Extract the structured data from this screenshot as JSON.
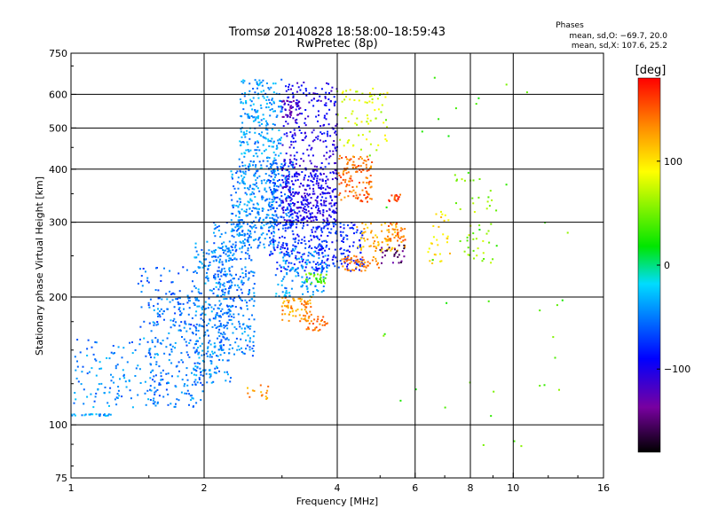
{
  "chart_data": {
    "type": "scatter",
    "title": "Tromsø 20140828 18:58:00–18:59:43",
    "subtitle": "RwPretec (8p)",
    "xlabel": "Frequency [MHz]",
    "ylabel": "Stationary phase Virtual Height [km]",
    "xscale": "log",
    "yscale": "log",
    "xlim": [
      1,
      16
    ],
    "ylim": [
      75,
      750
    ],
    "x_ticks": [
      1,
      2,
      4,
      6,
      8,
      10,
      16
    ],
    "x_tick_labels": [
      "1",
      "2",
      "4",
      "6",
      "8",
      "10",
      "16"
    ],
    "x_grid": [
      2,
      4,
      6,
      8,
      10
    ],
    "y_ticks": [
      75,
      100,
      200,
      300,
      400,
      500,
      600,
      750
    ],
    "y_tick_labels": [
      "75",
      "100",
      "200",
      "300",
      "400",
      "500",
      "600",
      "750"
    ],
    "y_grid": [
      100,
      200,
      300,
      400,
      500,
      600
    ],
    "grid": true,
    "legend": {
      "header": "Phases",
      "lines": [
        "mean, sd,O: −69.7, 20.0",
        "mean, sd,X: 107.6, 25.2"
      ],
      "placement": "top-right"
    },
    "colorbar": {
      "label": "[deg]",
      "range": [
        -180,
        180
      ],
      "ticks": [
        100,
        0,
        -100
      ],
      "tick_labels": [
        "100",
        "0",
        "−100"
      ],
      "colormap": "rainbow (black → purple → blue → cyan → green → yellow → orange → red)"
    },
    "point_clusters": [
      {
        "x": [
          1.0,
          1.25
        ],
        "y": [
          105,
          106
        ],
        "phase": -40,
        "n": 25
      },
      {
        "x": [
          1.0,
          1.6
        ],
        "y": [
          110,
          160
        ],
        "phase": -45,
        "n": 120
      },
      {
        "x": [
          1.5,
          2.0
        ],
        "y": [
          110,
          200
        ],
        "phase": -50,
        "n": 230
      },
      {
        "x": [
          1.4,
          1.9
        ],
        "y": [
          170,
          240
        ],
        "phase": -60,
        "n": 60
      },
      {
        "x": [
          1.9,
          2.3
        ],
        "y": [
          125,
          270
        ],
        "phase": -45,
        "n": 260
      },
      {
        "x": [
          2.1,
          2.6
        ],
        "y": [
          145,
          300
        ],
        "phase": -50,
        "n": 300
      },
      {
        "x": [
          2.3,
          2.9
        ],
        "y": [
          260,
          420
        ],
        "phase": -45,
        "n": 300
      },
      {
        "x": [
          2.4,
          3.0
        ],
        "y": [
          420,
          650
        ],
        "phase": -40,
        "n": 220
      },
      {
        "x": [
          2.8,
          3.2
        ],
        "y": [
          290,
          420
        ],
        "phase": -60,
        "n": 160
      },
      {
        "x": [
          3.0,
          4.0
        ],
        "y": [
          300,
          400
        ],
        "phase": -100,
        "n": 320
      },
      {
        "x": [
          3.0,
          4.0
        ],
        "y": [
          400,
          640
        ],
        "phase": -100,
        "n": 200
      },
      {
        "x": [
          3.0,
          3.3
        ],
        "y": [
          530,
          580
        ],
        "phase": -120,
        "n": 40
      },
      {
        "x": [
          2.8,
          4.6
        ],
        "y": [
          230,
          300
        ],
        "phase": -80,
        "n": 300
      },
      {
        "x": [
          2.9,
          3.8
        ],
        "y": [
          200,
          260
        ],
        "phase": -40,
        "n": 120
      },
      {
        "x": [
          3.4,
          3.8
        ],
        "y": [
          215,
          228
        ],
        "phase": 40,
        "n": 30
      },
      {
        "x": [
          3.0,
          3.5
        ],
        "y": [
          175,
          200
        ],
        "phase": 130,
        "n": 70
      },
      {
        "x": [
          3.4,
          3.8
        ],
        "y": [
          165,
          180
        ],
        "phase": 140,
        "n": 30
      },
      {
        "x": [
          4.0,
          4.8
        ],
        "y": [
          335,
          430
        ],
        "phase": 145,
        "n": 120
      },
      {
        "x": [
          4.0,
          5.2
        ],
        "y": [
          440,
          620
        ],
        "phase": 80,
        "n": 70
      },
      {
        "x": [
          4.1,
          5.0
        ],
        "y": [
          230,
          250
        ],
        "phase": 140,
        "n": 50
      },
      {
        "x": [
          4.4,
          5.5
        ],
        "y": [
          255,
          300
        ],
        "phase": 120,
        "n": 60
      },
      {
        "x": [
          5.2,
          5.7
        ],
        "y": [
          260,
          300
        ],
        "phase": 140,
        "n": 40
      },
      {
        "x": [
          5.2,
          5.6
        ],
        "y": [
          335,
          350
        ],
        "phase": 160,
        "n": 15
      },
      {
        "x": [
          5.0,
          5.7
        ],
        "y": [
          240,
          265
        ],
        "phase": -150,
        "n": 25
      },
      {
        "x": [
          6.4,
          7.2
        ],
        "y": [
          240,
          320
        ],
        "phase": 100,
        "n": 30
      },
      {
        "x": [
          7.3,
          9.2
        ],
        "y": [
          240,
          380
        ],
        "phase": 60,
        "n": 45
      },
      {
        "x": [
          2.5,
          2.8
        ],
        "y": [
          115,
          125
        ],
        "phase": 130,
        "n": 15
      },
      {
        "x": [
          4.6,
          13.5
        ],
        "y": [
          80,
          680
        ],
        "phase": 40,
        "n": 45
      }
    ]
  }
}
